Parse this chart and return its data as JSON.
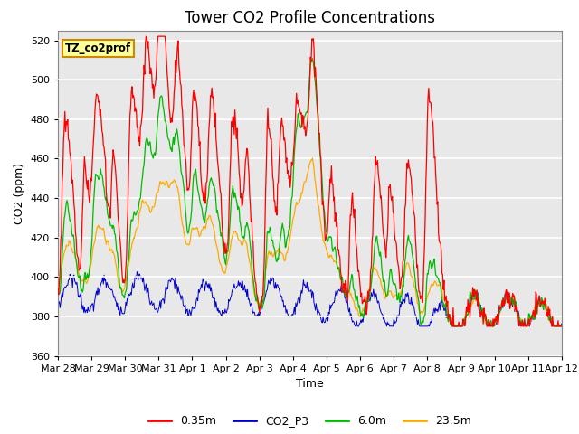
{
  "title": "Tower CO2 Profile Concentrations",
  "xlabel": "Time",
  "ylabel": "CO2 (ppm)",
  "ylim": [
    360,
    525
  ],
  "yticks": [
    360,
    380,
    400,
    420,
    440,
    460,
    480,
    500,
    520
  ],
  "xtick_labels": [
    "Mar 28",
    "Mar 29",
    "Mar 30",
    "Mar 31",
    "Apr 1",
    "Apr 2",
    "Apr 3",
    "Apr 4",
    "Apr 5",
    "Apr 6",
    "Apr 7",
    "Apr 8",
    "Apr 9",
    "Apr 10",
    "Apr 11",
    "Apr 12"
  ],
  "colors": {
    "0.35m": "#ff0000",
    "CO2_P3": "#0000cc",
    "6.0m": "#00bb00",
    "23.5m": "#ffaa00"
  },
  "legend_labels": [
    "0.35m",
    "CO2_P3",
    "6.0m",
    "23.5m"
  ],
  "annotation_text": "TZ_co2prof",
  "annotation_box_facecolor": "#ffff99",
  "annotation_box_edgecolor": "#cc8800",
  "plot_bg_color": "#e8e8e8",
  "title_fontsize": 12,
  "figsize": [
    6.4,
    4.8
  ],
  "dpi": 100
}
